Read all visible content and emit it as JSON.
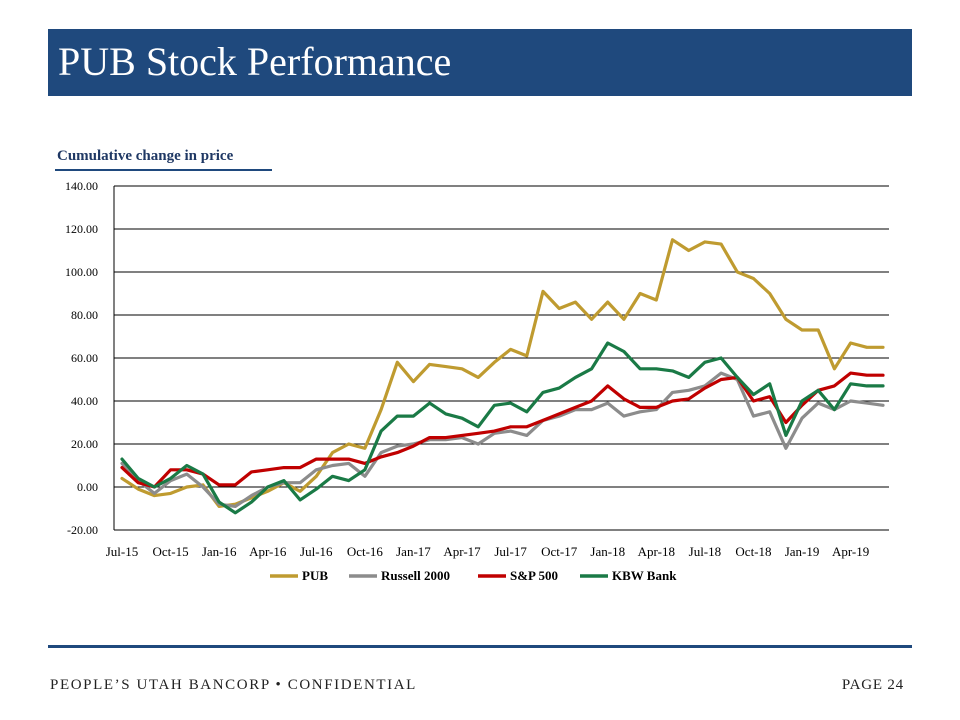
{
  "header": {
    "title": "PUB Stock Performance"
  },
  "footer": {
    "left": "PEOPLE’S UTAH BANCORP • CONFIDENTIAL",
    "page": "PAGE 24"
  },
  "chart_data": {
    "type": "line",
    "title": "Cumulative change in price",
    "xlabel": "",
    "ylabel": "",
    "ylim": [
      -20,
      140
    ],
    "yticks": [
      -20,
      0,
      20,
      40,
      60,
      80,
      100,
      120,
      140
    ],
    "ytick_labels": [
      "-20.00",
      "0.00",
      "20.00",
      "40.00",
      "60.00",
      "80.00",
      "100.00",
      "120.00",
      "140.00"
    ],
    "x": [
      "Jul-15",
      "Aug-15",
      "Sep-15",
      "Oct-15",
      "Nov-15",
      "Dec-15",
      "Jan-16",
      "Feb-16",
      "Mar-16",
      "Apr-16",
      "May-16",
      "Jun-16",
      "Jul-16",
      "Aug-16",
      "Sep-16",
      "Oct-16",
      "Nov-16",
      "Dec-16",
      "Jan-17",
      "Feb-17",
      "Mar-17",
      "Apr-17",
      "May-17",
      "Jun-17",
      "Jul-17",
      "Aug-17",
      "Sep-17",
      "Oct-17",
      "Nov-17",
      "Dec-17",
      "Jan-18",
      "Feb-18",
      "Mar-18",
      "Apr-18",
      "May-18",
      "Jun-18",
      "Jul-18",
      "Aug-18",
      "Sep-18",
      "Oct-18",
      "Nov-18",
      "Dec-18",
      "Jan-19",
      "Feb-19",
      "Mar-19",
      "Apr-19",
      "May-19",
      "Jun-19"
    ],
    "xtick_labels": [
      "Jul-15",
      "Oct-15",
      "Jan-16",
      "Apr-16",
      "Jul-16",
      "Oct-16",
      "Jan-17",
      "Apr-17",
      "Jul-17",
      "Oct-17",
      "Jan-18",
      "Apr-18",
      "Jul-18",
      "Oct-18",
      "Jan-19",
      "Apr-19"
    ],
    "grid": "horizontal",
    "legend": "bottom",
    "series": [
      {
        "name": "PUB",
        "color": "#bf9b30",
        "values": [
          4,
          -1,
          -4,
          -3,
          0,
          1,
          -9,
          -8,
          -5,
          -2,
          2,
          -2,
          5,
          16,
          20,
          18,
          36,
          58,
          49,
          57,
          56,
          55,
          51,
          58,
          64,
          61,
          91,
          83,
          86,
          78,
          86,
          78,
          90,
          87,
          115,
          110,
          114,
          113,
          100,
          97,
          90,
          78,
          73,
          73,
          55,
          67,
          65,
          65
        ]
      },
      {
        "name": "Russell 2000",
        "color": "#8c8c8c",
        "values": [
          11,
          3,
          -3,
          3,
          6,
          0,
          -8,
          -9,
          -4,
          0,
          2,
          2,
          8,
          10,
          11,
          5,
          16,
          19,
          20,
          22,
          22,
          23,
          20,
          25,
          26,
          24,
          31,
          33,
          36,
          36,
          39,
          33,
          35,
          36,
          44,
          45,
          47,
          53,
          50,
          33,
          35,
          18,
          32,
          39,
          36,
          40,
          39,
          38
        ]
      },
      {
        "name": "S&P 500",
        "color": "#c00000",
        "values": [
          9,
          2,
          0,
          8,
          8,
          6,
          1,
          1,
          7,
          8,
          9,
          9,
          13,
          13,
          13,
          11,
          14,
          16,
          19,
          23,
          23,
          24,
          25,
          26,
          28,
          28,
          31,
          34,
          37,
          40,
          47,
          41,
          37,
          37,
          40,
          41,
          46,
          50,
          51,
          40,
          42,
          30,
          38,
          45,
          47,
          53,
          52,
          52
        ]
      },
      {
        "name": "KBW Bank",
        "color": "#1a7a46",
        "values": [
          13,
          4,
          0,
          4,
          10,
          6,
          -7,
          -12,
          -7,
          0,
          3,
          -6,
          -1,
          5,
          3,
          8,
          26,
          33,
          33,
          39,
          34,
          32,
          28,
          38,
          39,
          35,
          44,
          46,
          51,
          55,
          67,
          63,
          55,
          55,
          54,
          51,
          58,
          60,
          51,
          43,
          48,
          24,
          40,
          45,
          36,
          48,
          47,
          47
        ]
      }
    ]
  }
}
